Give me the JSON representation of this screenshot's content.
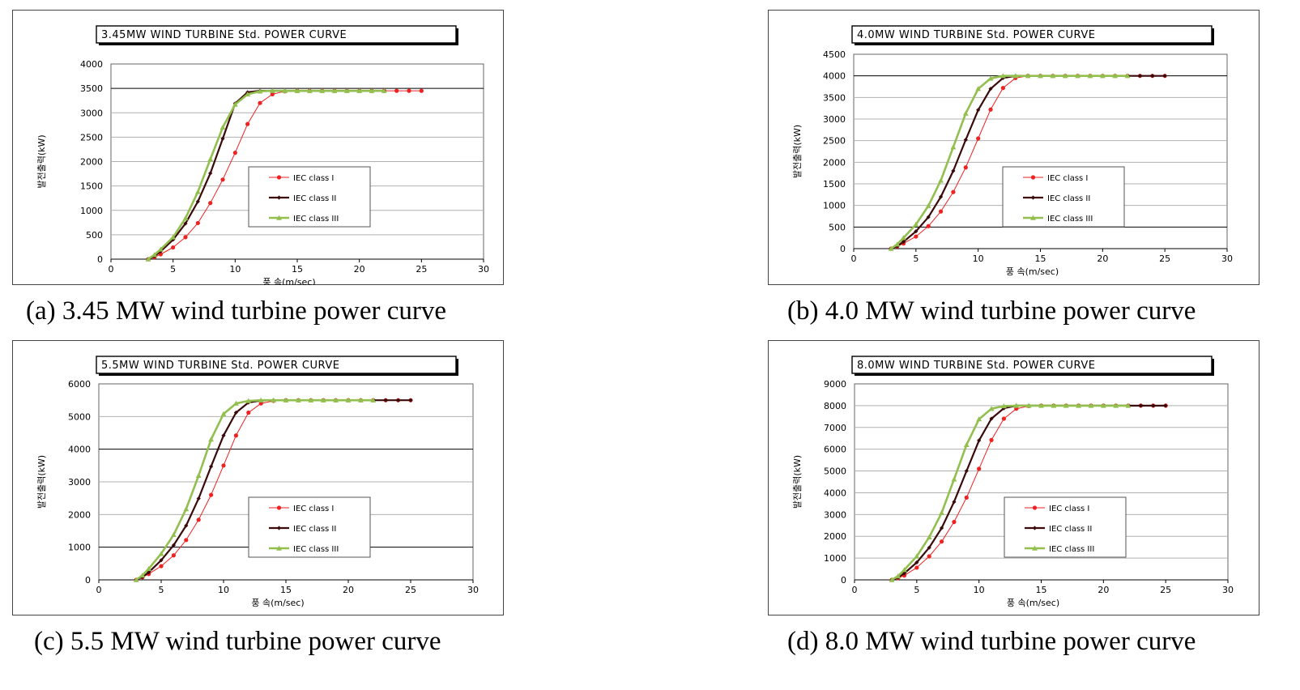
{
  "colors": {
    "class1": "#ee2222",
    "class2": "#3a0a0a",
    "class3": "#92bf4e"
  },
  "chart_data": [
    {
      "type": "line",
      "title": "3.45MW WIND TURBINE Std. POWER CURVE",
      "xlabel": "풍 속(m/sec)",
      "ylabel": "발전출력(kW)",
      "xlim": [
        0,
        30
      ],
      "ylim": [
        0,
        4000
      ],
      "yticks": [
        0,
        500,
        1000,
        1500,
        2000,
        2500,
        3000,
        3500,
        4000
      ],
      "xticks": [
        0,
        5,
        10,
        15,
        20,
        25,
        30
      ],
      "dark_gridlines": [
        3500
      ],
      "legend_position": "center-right",
      "caption": "(a) 3.45 MW wind turbine power curve",
      "series": [
        {
          "name": "IEC class I",
          "x": [
            3,
            3.5,
            4,
            5,
            6,
            7,
            8,
            9,
            10,
            11,
            12,
            13,
            14,
            15,
            16,
            17,
            18,
            19,
            20,
            21,
            22,
            23,
            24,
            25
          ],
          "values": [
            0,
            40,
            100,
            240,
            450,
            740,
            1150,
            1630,
            2180,
            2770,
            3200,
            3380,
            3440,
            3450,
            3450,
            3450,
            3450,
            3450,
            3450,
            3450,
            3450,
            3450,
            3450,
            3450
          ]
        },
        {
          "name": "IEC class II",
          "x": [
            3,
            3.5,
            4,
            5,
            6,
            7,
            8,
            9,
            10,
            11,
            12,
            13,
            14,
            15,
            16,
            17,
            18,
            19,
            20,
            21,
            22
          ],
          "values": [
            0,
            60,
            160,
            400,
            730,
            1180,
            1760,
            2470,
            3190,
            3420,
            3450,
            3450,
            3450,
            3450,
            3450,
            3450,
            3450,
            3450,
            3450,
            3450,
            3450
          ]
        },
        {
          "name": "IEC class III",
          "x": [
            3,
            3.5,
            4,
            5,
            6,
            7,
            8,
            9,
            10,
            11,
            12,
            13,
            14,
            15,
            16,
            17,
            18,
            19,
            20,
            21,
            22
          ],
          "values": [
            0,
            90,
            200,
            450,
            840,
            1380,
            2050,
            2700,
            3170,
            3380,
            3440,
            3450,
            3450,
            3450,
            3450,
            3450,
            3450,
            3450,
            3450,
            3450,
            3450
          ]
        }
      ]
    },
    {
      "type": "line",
      "title": "4.0MW WIND TURBINE Std. POWER CURVE",
      "xlabel": "풍 속(m/sec)",
      "ylabel": "발전출력(kW)",
      "xlim": [
        0,
        30
      ],
      "ylim": [
        0,
        4500
      ],
      "yticks": [
        0,
        500,
        1000,
        1500,
        2000,
        2500,
        3000,
        3500,
        4000,
        4500
      ],
      "xticks": [
        0,
        5,
        10,
        15,
        20,
        25,
        30
      ],
      "dark_gridlines": [
        500,
        4000
      ],
      "legend_position": "center-right",
      "caption": "(b) 4.0 MW wind turbine power curve",
      "series": [
        {
          "name": "IEC class I",
          "x": [
            3,
            3.5,
            4,
            5,
            6,
            7,
            8,
            9,
            10,
            11,
            12,
            13,
            14,
            15,
            16,
            17,
            18,
            19,
            20,
            21,
            22,
            23,
            24,
            25
          ],
          "values": [
            0,
            50,
            120,
            280,
            520,
            860,
            1310,
            1880,
            2550,
            3220,
            3720,
            3950,
            4000,
            4000,
            4000,
            4000,
            4000,
            4000,
            4000,
            4000,
            4000,
            4000,
            4000,
            4000
          ]
        },
        {
          "name": "IEC class II",
          "x": [
            3,
            3.5,
            4,
            5,
            6,
            7,
            8,
            9,
            10,
            11,
            12,
            13,
            14,
            15,
            16,
            17,
            18,
            19,
            20,
            21,
            22,
            23,
            24,
            25
          ],
          "values": [
            0,
            60,
            160,
            400,
            730,
            1200,
            1800,
            2520,
            3210,
            3700,
            3950,
            4000,
            4000,
            4000,
            4000,
            4000,
            4000,
            4000,
            4000,
            4000,
            4000,
            4000,
            4000,
            4000
          ]
        },
        {
          "name": "IEC class III",
          "x": [
            3,
            3.5,
            4,
            5,
            6,
            7,
            8,
            9,
            10,
            11,
            12,
            13,
            14,
            15,
            16,
            17,
            18,
            19,
            20,
            21,
            22
          ],
          "values": [
            0,
            100,
            250,
            560,
            990,
            1580,
            2350,
            3130,
            3700,
            3940,
            4000,
            4000,
            4000,
            4000,
            4000,
            4000,
            4000,
            4000,
            4000,
            4000,
            4000
          ]
        }
      ]
    },
    {
      "type": "line",
      "title": "5.5MW WIND TURBINE Std. POWER CURVE",
      "xlabel": "풍 속(m/sec)",
      "ylabel": "발전출력(kW)",
      "xlim": [
        0,
        30
      ],
      "ylim": [
        0,
        6000
      ],
      "yticks": [
        0,
        1000,
        2000,
        3000,
        4000,
        5000,
        6000
      ],
      "xticks": [
        0,
        5,
        10,
        15,
        20,
        25,
        30
      ],
      "dark_gridlines": [
        1000,
        4000
      ],
      "legend_position": "center-right",
      "caption": "(c) 5.5 MW wind turbine power curve",
      "series": [
        {
          "name": "IEC class I",
          "x": [
            3,
            3.5,
            4,
            5,
            6,
            7,
            8,
            9,
            10,
            11,
            12,
            13,
            14,
            15,
            16,
            17,
            18,
            19,
            20,
            21,
            22,
            23,
            24,
            25
          ],
          "values": [
            0,
            80,
            180,
            420,
            750,
            1220,
            1840,
            2600,
            3500,
            4420,
            5120,
            5400,
            5480,
            5500,
            5500,
            5500,
            5500,
            5500,
            5500,
            5500,
            5500,
            5500,
            5500,
            5500
          ]
        },
        {
          "name": "IEC class II",
          "x": [
            3,
            3.5,
            4,
            5,
            6,
            7,
            8,
            9,
            10,
            11,
            12,
            13,
            14,
            15,
            16,
            17,
            18,
            19,
            20,
            21,
            22,
            23,
            24,
            25
          ],
          "values": [
            0,
            90,
            230,
            600,
            1060,
            1660,
            2490,
            3470,
            4420,
            5120,
            5430,
            5490,
            5500,
            5500,
            5500,
            5500,
            5500,
            5500,
            5500,
            5500,
            5500,
            5500,
            5500,
            5500
          ]
        },
        {
          "name": "IEC class III",
          "x": [
            3,
            3.5,
            4,
            5,
            6,
            7,
            8,
            9,
            10,
            11,
            12,
            13,
            14,
            15,
            16,
            17,
            18,
            19,
            20,
            21,
            22
          ],
          "values": [
            0,
            140,
            340,
            800,
            1380,
            2170,
            3190,
            4300,
            5080,
            5400,
            5480,
            5500,
            5500,
            5500,
            5500,
            5500,
            5500,
            5500,
            5500,
            5500,
            5500
          ]
        }
      ]
    },
    {
      "type": "line",
      "title": "8.0MW WIND TURBINE Std. POWER CURVE",
      "xlabel": "풍 속(m/sec)",
      "ylabel": "발전출력(kW)",
      "xlim": [
        0,
        30
      ],
      "ylim": [
        0,
        9000
      ],
      "yticks": [
        0,
        1000,
        2000,
        3000,
        4000,
        5000,
        6000,
        7000,
        8000,
        9000
      ],
      "xticks": [
        0,
        5,
        10,
        15,
        20,
        25,
        30
      ],
      "dark_gridlines": [],
      "legend_position": "center-right",
      "caption": "(d) 8.0 MW wind turbine power curve",
      "series": [
        {
          "name": "IEC class I",
          "x": [
            3,
            3.5,
            4,
            5,
            6,
            7,
            8,
            9,
            10,
            11,
            12,
            13,
            14,
            15,
            16,
            17,
            18,
            19,
            20,
            21,
            22,
            23,
            24,
            25
          ],
          "values": [
            0,
            80,
            200,
            560,
            1080,
            1760,
            2660,
            3780,
            5100,
            6420,
            7400,
            7860,
            7980,
            8000,
            8000,
            8000,
            8000,
            8000,
            8000,
            8000,
            8000,
            8000,
            8000,
            8000
          ]
        },
        {
          "name": "IEC class II",
          "x": [
            3,
            3.5,
            4,
            5,
            6,
            7,
            8,
            9,
            10,
            11,
            12,
            13,
            14,
            15,
            16,
            17,
            18,
            19,
            20,
            21,
            22,
            23,
            24,
            25
          ],
          "values": [
            0,
            110,
            300,
            800,
            1480,
            2380,
            3580,
            5000,
            6400,
            7400,
            7880,
            8000,
            8000,
            8000,
            8000,
            8000,
            8000,
            8000,
            8000,
            8000,
            8000,
            8000,
            8000,
            8000
          ]
        },
        {
          "name": "IEC class III",
          "x": [
            3,
            3.5,
            4,
            5,
            6,
            7,
            8,
            9,
            10,
            11,
            12,
            13,
            14,
            15,
            16,
            17,
            18,
            19,
            20,
            21,
            22
          ],
          "values": [
            0,
            170,
            460,
            1080,
            1960,
            3080,
            4620,
            6200,
            7380,
            7860,
            7980,
            8000,
            8000,
            8000,
            8000,
            8000,
            8000,
            8000,
            8000,
            8000,
            8000
          ]
        }
      ]
    }
  ]
}
